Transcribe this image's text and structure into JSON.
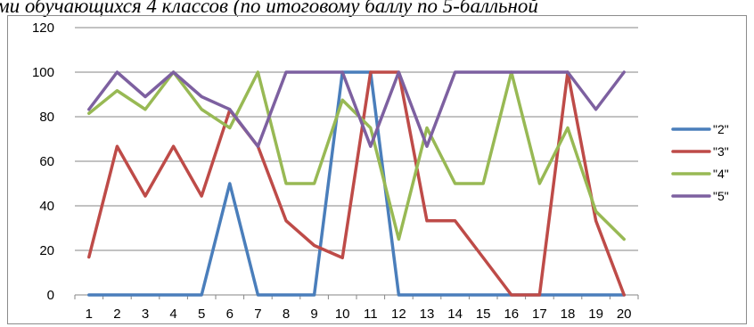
{
  "header": {
    "title_fragment": "ми обучающихся 4 классов (по итоговому баллу по 5-балльной"
  },
  "chart_data": {
    "type": "line",
    "x": [
      "1",
      "2",
      "3",
      "4",
      "5",
      "6",
      "7",
      "8",
      "9",
      "10",
      "11",
      "12",
      "13",
      "14",
      "15",
      "16",
      "17",
      "18",
      "19",
      "20"
    ],
    "ylim": [
      0,
      120
    ],
    "yticks": [
      0,
      20,
      40,
      60,
      80,
      100,
      120
    ],
    "grid": true,
    "legend_position": "right",
    "series": [
      {
        "name": "\"2\"",
        "color": "#4a7ebb",
        "values": [
          0,
          0,
          0,
          0,
          0,
          50,
          0,
          0,
          0,
          100,
          100,
          0,
          0,
          0,
          0,
          0,
          0,
          0,
          0,
          0
        ]
      },
      {
        "name": "\"3\"",
        "color": "#be4b48",
        "values": [
          17,
          66.7,
          44.4,
          66.7,
          44.4,
          83,
          66.7,
          33.3,
          22.2,
          16.7,
          100,
          100,
          33.3,
          33.3,
          16.7,
          0,
          0,
          100,
          33.3,
          0
        ]
      },
      {
        "name": "\"4\"",
        "color": "#98b954",
        "values": [
          81.5,
          91.7,
          83.3,
          100,
          83.3,
          75,
          100,
          50,
          50,
          87.5,
          75,
          25,
          75,
          50,
          50,
          100,
          50,
          75,
          37.5,
          25
        ]
      },
      {
        "name": "\"5\"",
        "color": "#7d60a0",
        "values": [
          83.3,
          100,
          89,
          100,
          89,
          83.3,
          66.7,
          100,
          100,
          100,
          66.7,
          100,
          66.7,
          100,
          100,
          100,
          100,
          100,
          83.3,
          100
        ]
      }
    ]
  }
}
